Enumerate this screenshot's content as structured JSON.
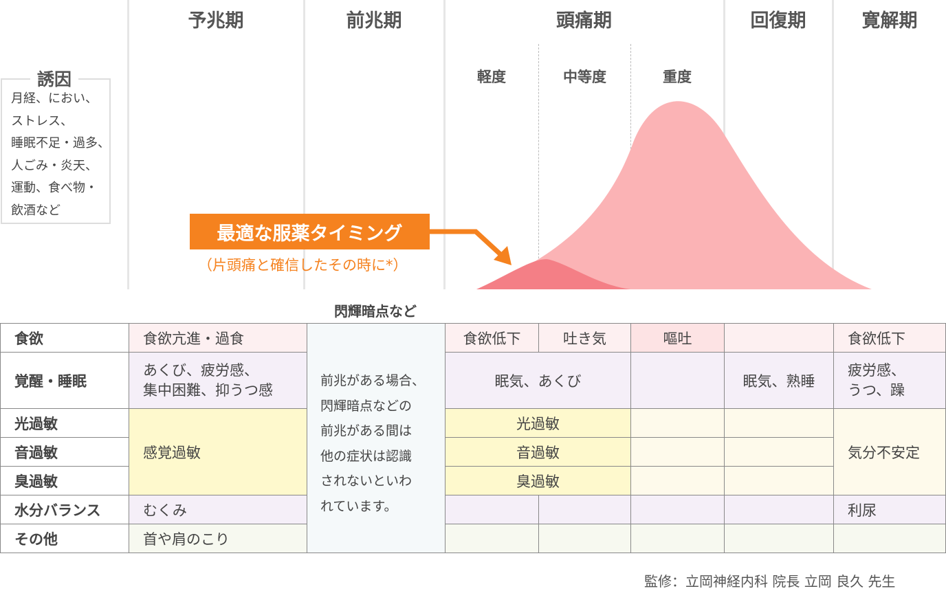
{
  "phases": [
    "予兆期",
    "前兆期",
    "頭痛期",
    "回復期",
    "寛解期"
  ],
  "severity": [
    "軽度",
    "中等度",
    "重度"
  ],
  "trigger": {
    "title": "誘因",
    "lines": "月経、におい、\nストレス、\n睡眠不足・過多、\n人ごみ・炎天、\n運動、食べ物・\n飲酒など"
  },
  "timing": {
    "label": "最適な服薬タイミング",
    "note": "（片頭痛と確信したその時に*）",
    "color": "#f5821f"
  },
  "curve_colors": {
    "main": "#fbb3b5",
    "small": "#f47f86"
  },
  "aura_label": "閃輝暗点など",
  "aura_text": "前兆がある場合、\n閃輝暗点などの\n前兆がある間は\n他の症状は認識\nされないといわ\nれています。",
  "table": {
    "row_headers": [
      "食欲",
      "覚醒・睡眠",
      "光過敏",
      "音過敏",
      "臭過敏",
      "水分バランス",
      "その他"
    ],
    "prodrome": {
      "appetite": "食欲亢進・過食",
      "sleep_line1": "あくび、疲労感、",
      "sleep_line2": "集中困難、抑うつ感",
      "sensory": "感覚過敏",
      "water": "むくみ",
      "other": "首や肩のこり"
    },
    "headache": {
      "appetite": [
        "食欲低下",
        "吐き気",
        "嘔吐"
      ],
      "sleep": "眠気、あくび",
      "light": "光過敏",
      "sound": "音過敏",
      "smell": "臭過敏"
    },
    "recovery": {
      "sleep": "眠気、熟睡"
    },
    "remission": {
      "appetite": "食欲低下",
      "sleep_line1": "疲労感、",
      "sleep_line2": "うつ、躁",
      "mood": "気分不安定",
      "water": "利尿"
    }
  },
  "footer": "監修：立岡神経内科 院長 立岡 良久 先生"
}
